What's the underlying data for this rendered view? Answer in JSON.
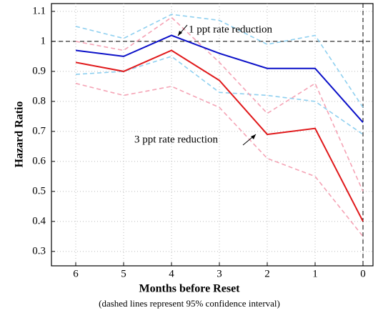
{
  "chart_data": {
    "type": "line",
    "x_label": "Months before Reset",
    "y_label": "Hazard Ratio",
    "caption": "(dashed lines represent 95% confidence interval)",
    "categories": [
      "6",
      "5",
      "4",
      "3",
      "2",
      "1",
      "0"
    ],
    "ylim": [
      0.252,
      1.126
    ],
    "yticks": [
      0.3,
      0.4,
      0.5,
      0.6,
      0.7,
      0.8,
      0.9,
      1,
      1.1
    ],
    "grid": true,
    "hline": 1,
    "vline": "0",
    "series": [
      {
        "color": "#8fd0f0",
        "dashed": true,
        "values": [
          1.05,
          1.01,
          1.09,
          1.07,
          0.99,
          1.02,
          0.78
        ]
      },
      {
        "color": "#8fd0f0",
        "dashed": true,
        "values": [
          0.89,
          0.9,
          0.95,
          0.83,
          0.82,
          0.8,
          0.69
        ]
      },
      {
        "color": "#f5a3b5",
        "dashed": true,
        "values": [
          1.0,
          0.97,
          1.08,
          0.93,
          0.76,
          0.86,
          0.5
        ]
      },
      {
        "color": "#f5a3b5",
        "dashed": true,
        "values": [
          0.86,
          0.82,
          0.85,
          0.78,
          0.61,
          0.55,
          0.35
        ]
      },
      {
        "color": "#0b10c8",
        "dashed": false,
        "values": [
          0.97,
          0.95,
          1.02,
          0.96,
          0.91,
          0.91,
          0.73
        ]
      },
      {
        "color": "#e0181a",
        "dashed": false,
        "values": [
          0.93,
          0.9,
          0.97,
          0.87,
          0.69,
          0.71,
          0.4
        ]
      }
    ],
    "annotations": [
      "1 ppt rate reduction",
      "3 ppt rate reduction"
    ]
  }
}
